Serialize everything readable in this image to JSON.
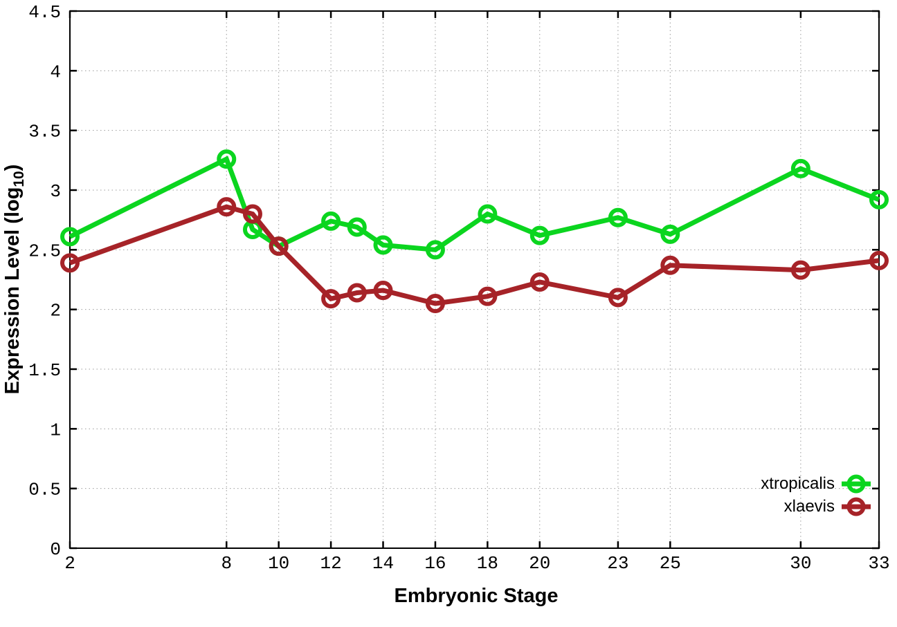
{
  "chart_data": {
    "type": "line",
    "title": "",
    "xlabel": "Embryonic Stage",
    "ylabel": {
      "prefix": "Expression Level (log",
      "sub": "10",
      "suffix": ")"
    },
    "x": [
      2,
      8,
      9,
      10,
      12,
      13,
      14,
      16,
      18,
      20,
      23,
      25,
      30,
      33
    ],
    "series": [
      {
        "name": "xtropicalis",
        "color": "#0bd51f",
        "values": [
          2.61,
          3.26,
          2.67,
          2.53,
          2.74,
          2.69,
          2.54,
          2.5,
          2.8,
          2.62,
          2.77,
          2.63,
          3.18,
          2.92
        ]
      },
      {
        "name": "xlaevis",
        "color": "#a62328",
        "values": [
          2.39,
          2.86,
          2.8,
          2.53,
          2.09,
          2.14,
          2.16,
          2.05,
          2.11,
          2.23,
          2.1,
          2.37,
          2.33,
          2.41
        ]
      }
    ],
    "xlim": [
      2,
      33
    ],
    "ylim": [
      0,
      4.5
    ],
    "xticks": {
      "values": [
        2,
        8,
        10,
        12,
        14,
        16,
        18,
        20,
        23,
        25,
        30,
        33
      ],
      "labels": [
        "2",
        "8",
        "10",
        "12",
        "14",
        "16",
        "18",
        "20",
        "23",
        "25",
        "30",
        "33"
      ]
    },
    "yticks": {
      "values": [
        0,
        0.5,
        1,
        1.5,
        2,
        2.5,
        3,
        3.5,
        4,
        4.5
      ],
      "labels": [
        "0",
        "0.5",
        "1",
        "1.5",
        "2",
        "2.5",
        "3",
        "3.5",
        "4",
        "4.5"
      ]
    },
    "grid": true,
    "legend_position": "bottom-right",
    "marker": "open-circle"
  },
  "style": {
    "background": "#ffffff",
    "grid_color": "#9a9a9a",
    "axis_color": "#000000",
    "text_color": "#000000"
  }
}
